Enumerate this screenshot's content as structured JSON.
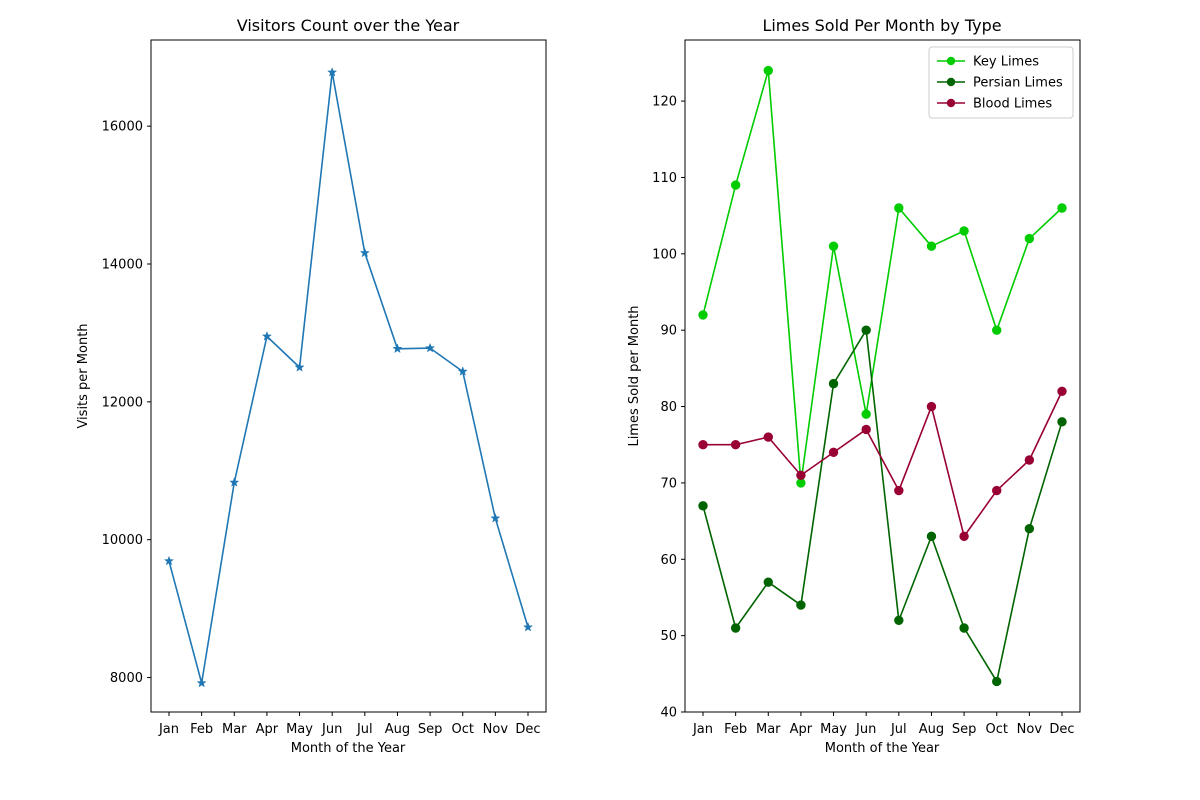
{
  "chart_data": [
    {
      "type": "line",
      "title": "Visitors Count over the Year",
      "xlabel": "Month of the Year",
      "ylabel": "Visits per Month",
      "categories": [
        "Jan",
        "Feb",
        "Mar",
        "Apr",
        "May",
        "Jun",
        "Jul",
        "Aug",
        "Sep",
        "Oct",
        "Nov",
        "Dec"
      ],
      "ylim": [
        7500,
        17250
      ],
      "yticks": [
        8000,
        10000,
        12000,
        14000,
        16000
      ],
      "grid": false,
      "marker": "star",
      "series": [
        {
          "color": "#1f77b4",
          "values": [
            9690,
            7920,
            10830,
            12950,
            12500,
            16780,
            14160,
            12770,
            12780,
            12440,
            10310,
            8730
          ]
        }
      ]
    },
    {
      "type": "line",
      "title": "Limes Sold Per Month by Type",
      "xlabel": "Month of the Year",
      "ylabel": "Limes Sold per Month",
      "categories": [
        "Jan",
        "Feb",
        "Mar",
        "Apr",
        "May",
        "Jun",
        "Jul",
        "Aug",
        "Sep",
        "Oct",
        "Nov",
        "Dec"
      ],
      "ylim": [
        40,
        128
      ],
      "yticks": [
        40,
        50,
        60,
        70,
        80,
        90,
        100,
        110,
        120
      ],
      "grid": false,
      "legend": "top-right",
      "marker": "circle",
      "series": [
        {
          "name": "Key Limes",
          "color": "#00cc00",
          "values": [
            92,
            109,
            124,
            70,
            101,
            79,
            106,
            101,
            103,
            90,
            102,
            106
          ]
        },
        {
          "name": "Persian Limes",
          "color": "#006400",
          "values": [
            67,
            51,
            57,
            54,
            83,
            90,
            52,
            63,
            51,
            44,
            64,
            78
          ]
        },
        {
          "name": "Blood Limes",
          "color": "#990033",
          "values": [
            75,
            75,
            76,
            71,
            74,
            77,
            69,
            80,
            63,
            69,
            73,
            82
          ]
        }
      ]
    }
  ]
}
